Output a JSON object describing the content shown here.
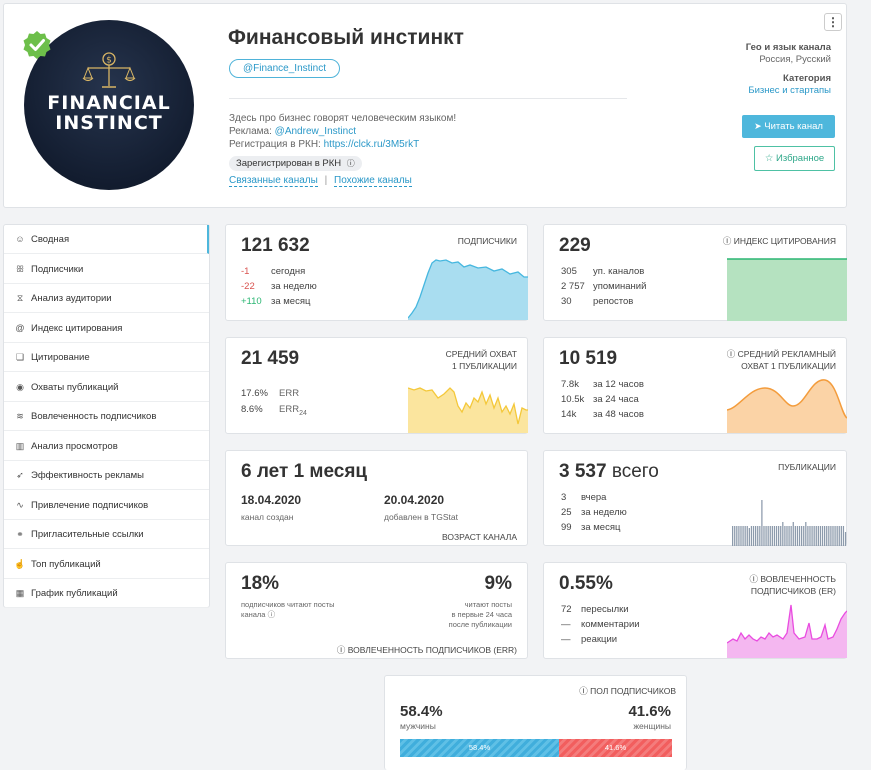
{
  "channel": {
    "title": "Финансовый инстинкт",
    "handle": "@Finance_Instinct",
    "logo_line1": "FINANCIAL",
    "logo_line2": "INSTINCT",
    "description": "Здесь про бизнес говорят человеческим языком!",
    "ads_label": "Реклама:",
    "ads_contact": "@Andrew_Instinct",
    "rkn_label": "Регистрация в РКН:",
    "rkn_link": "https://clck.ru/3M5rkT",
    "rkn_badge": "Зарегистрирован в РКН",
    "related_link": "Связанные каналы",
    "related_sep": "|",
    "similar_link": "Похожие каналы",
    "geo_label": "Гео и язык канала",
    "geo_value": "Россия, Русский",
    "category_label": "Категория",
    "category_value": "Бизнес и стартапы",
    "read_button": "Читать канал",
    "fav_button": "Избранное",
    "menu_glyph": "⋮"
  },
  "sidebar": {
    "items": [
      {
        "label": "Сводная",
        "icon": "☺"
      },
      {
        "label": "Подписчики",
        "icon": "ꕥ"
      },
      {
        "label": "Анализ аудитории",
        "icon": "⧖"
      },
      {
        "label": "Индекс цитирования",
        "icon": "@"
      },
      {
        "label": "Цитирование",
        "icon": "❏"
      },
      {
        "label": "Охваты публикаций",
        "icon": "◉"
      },
      {
        "label": "Вовлеченность подписчиков",
        "icon": "≋"
      },
      {
        "label": "Анализ просмотров",
        "icon": "▥"
      },
      {
        "label": "Эффективность рекламы",
        "icon": "➶"
      },
      {
        "label": "Привлечение подписчиков",
        "icon": "∿"
      },
      {
        "label": "Пригласительные ссылки",
        "icon": "⚭"
      },
      {
        "label": "Топ публикаций",
        "icon": "☝"
      },
      {
        "label": "График публикаций",
        "icon": "▦"
      }
    ]
  },
  "subscribers": {
    "value": "121 632",
    "title": "ПОДПИСЧИКИ",
    "rows": [
      {
        "v": "-1",
        "l": "сегодня"
      },
      {
        "v": "-22",
        "l": "за неделю"
      },
      {
        "v": "+110",
        "l": "за месяц"
      }
    ]
  },
  "citation": {
    "value": "229",
    "title": "ИНДЕКС ЦИТИРОВАНИЯ",
    "rows": [
      {
        "v": "305",
        "l": "уп. каналов"
      },
      {
        "v": "2 757",
        "l": "упоминаний"
      },
      {
        "v": "30",
        "l": "репостов"
      }
    ]
  },
  "reach": {
    "value": "21 459",
    "title_1": "СРЕДНИЙ ОХВАТ",
    "title_2": "1 ПУБЛИКАЦИИ",
    "err_v": "17.6%",
    "err_l": "ERR",
    "err24_v": "8.6%",
    "err24_l": "ERR",
    "err24_sub": "24"
  },
  "ad_reach": {
    "value": "10 519",
    "title_1": "СРЕДНИЙ РЕКЛАМНЫЙ",
    "title_2": "ОХВАТ 1 ПУБЛИКАЦИИ",
    "rows": [
      {
        "v": "7.8k",
        "l": "за 12 часов"
      },
      {
        "v": "10.5k",
        "l": "за 24 часа"
      },
      {
        "v": "14k",
        "l": "за 48 часов"
      }
    ]
  },
  "age": {
    "value": "6 лет 1 месяц",
    "created_date": "18.04.2020",
    "created_label": "канал создан",
    "added_date": "20.04.2020",
    "added_label": "добавлен в TGStat",
    "title": "ВОЗРАСТ КАНАЛА"
  },
  "posts": {
    "value": "3 537",
    "value_suffix": "всего",
    "title": "ПУБЛИКАЦИИ",
    "rows": [
      {
        "v": "3",
        "l": "вчера"
      },
      {
        "v": "25",
        "l": "за неделю"
      },
      {
        "v": "99",
        "l": "за месяц"
      }
    ]
  },
  "err": {
    "left_value": "18%",
    "left_label_1": "подписчиков читают посты",
    "left_label_2": "канала",
    "right_value": "9%",
    "right_label_1": "читают посты",
    "right_label_2": "в первые 24 часа",
    "right_label_3": "после публикации",
    "title": "ВОВЛЕЧЕННОСТЬ ПОДПИСЧИКОВ (ERR)"
  },
  "er": {
    "value": "0.55%",
    "title_1": "ВОВЛЕЧЕННОСТЬ",
    "title_2": "ПОДПИСЧИКОВ (ER)",
    "rows": [
      {
        "v": "72",
        "l": "пересылки"
      },
      {
        "v": "—",
        "l": "комментарии"
      },
      {
        "v": "—",
        "l": "реакции"
      }
    ]
  },
  "gender": {
    "title": "ПОЛ ПОДПИСЧИКОВ",
    "male_value": "58.4%",
    "male_label": "мужчины",
    "female_value": "41.6%",
    "female_label": "женщины",
    "male_share": 58.4,
    "female_share": 41.6,
    "male_bar_label": "58.4%",
    "female_bar_label": "41.6%"
  },
  "colors": {
    "accent": "#4eb7dc",
    "green": "#2bb673",
    "red": "#d9534f",
    "subs_fill": "#a9ddf0",
    "subs_line": "#46b7df",
    "citation_fill": "#b5e2c0",
    "reach_fill": "#fbe59e",
    "reach_line": "#f4c83a",
    "ad_fill": "#fbd3a6",
    "ad_line": "#f39c3c",
    "posts_bar": "#8c9aab",
    "er_fill": "#f4b7f0",
    "er_line": "#e94ce0"
  }
}
